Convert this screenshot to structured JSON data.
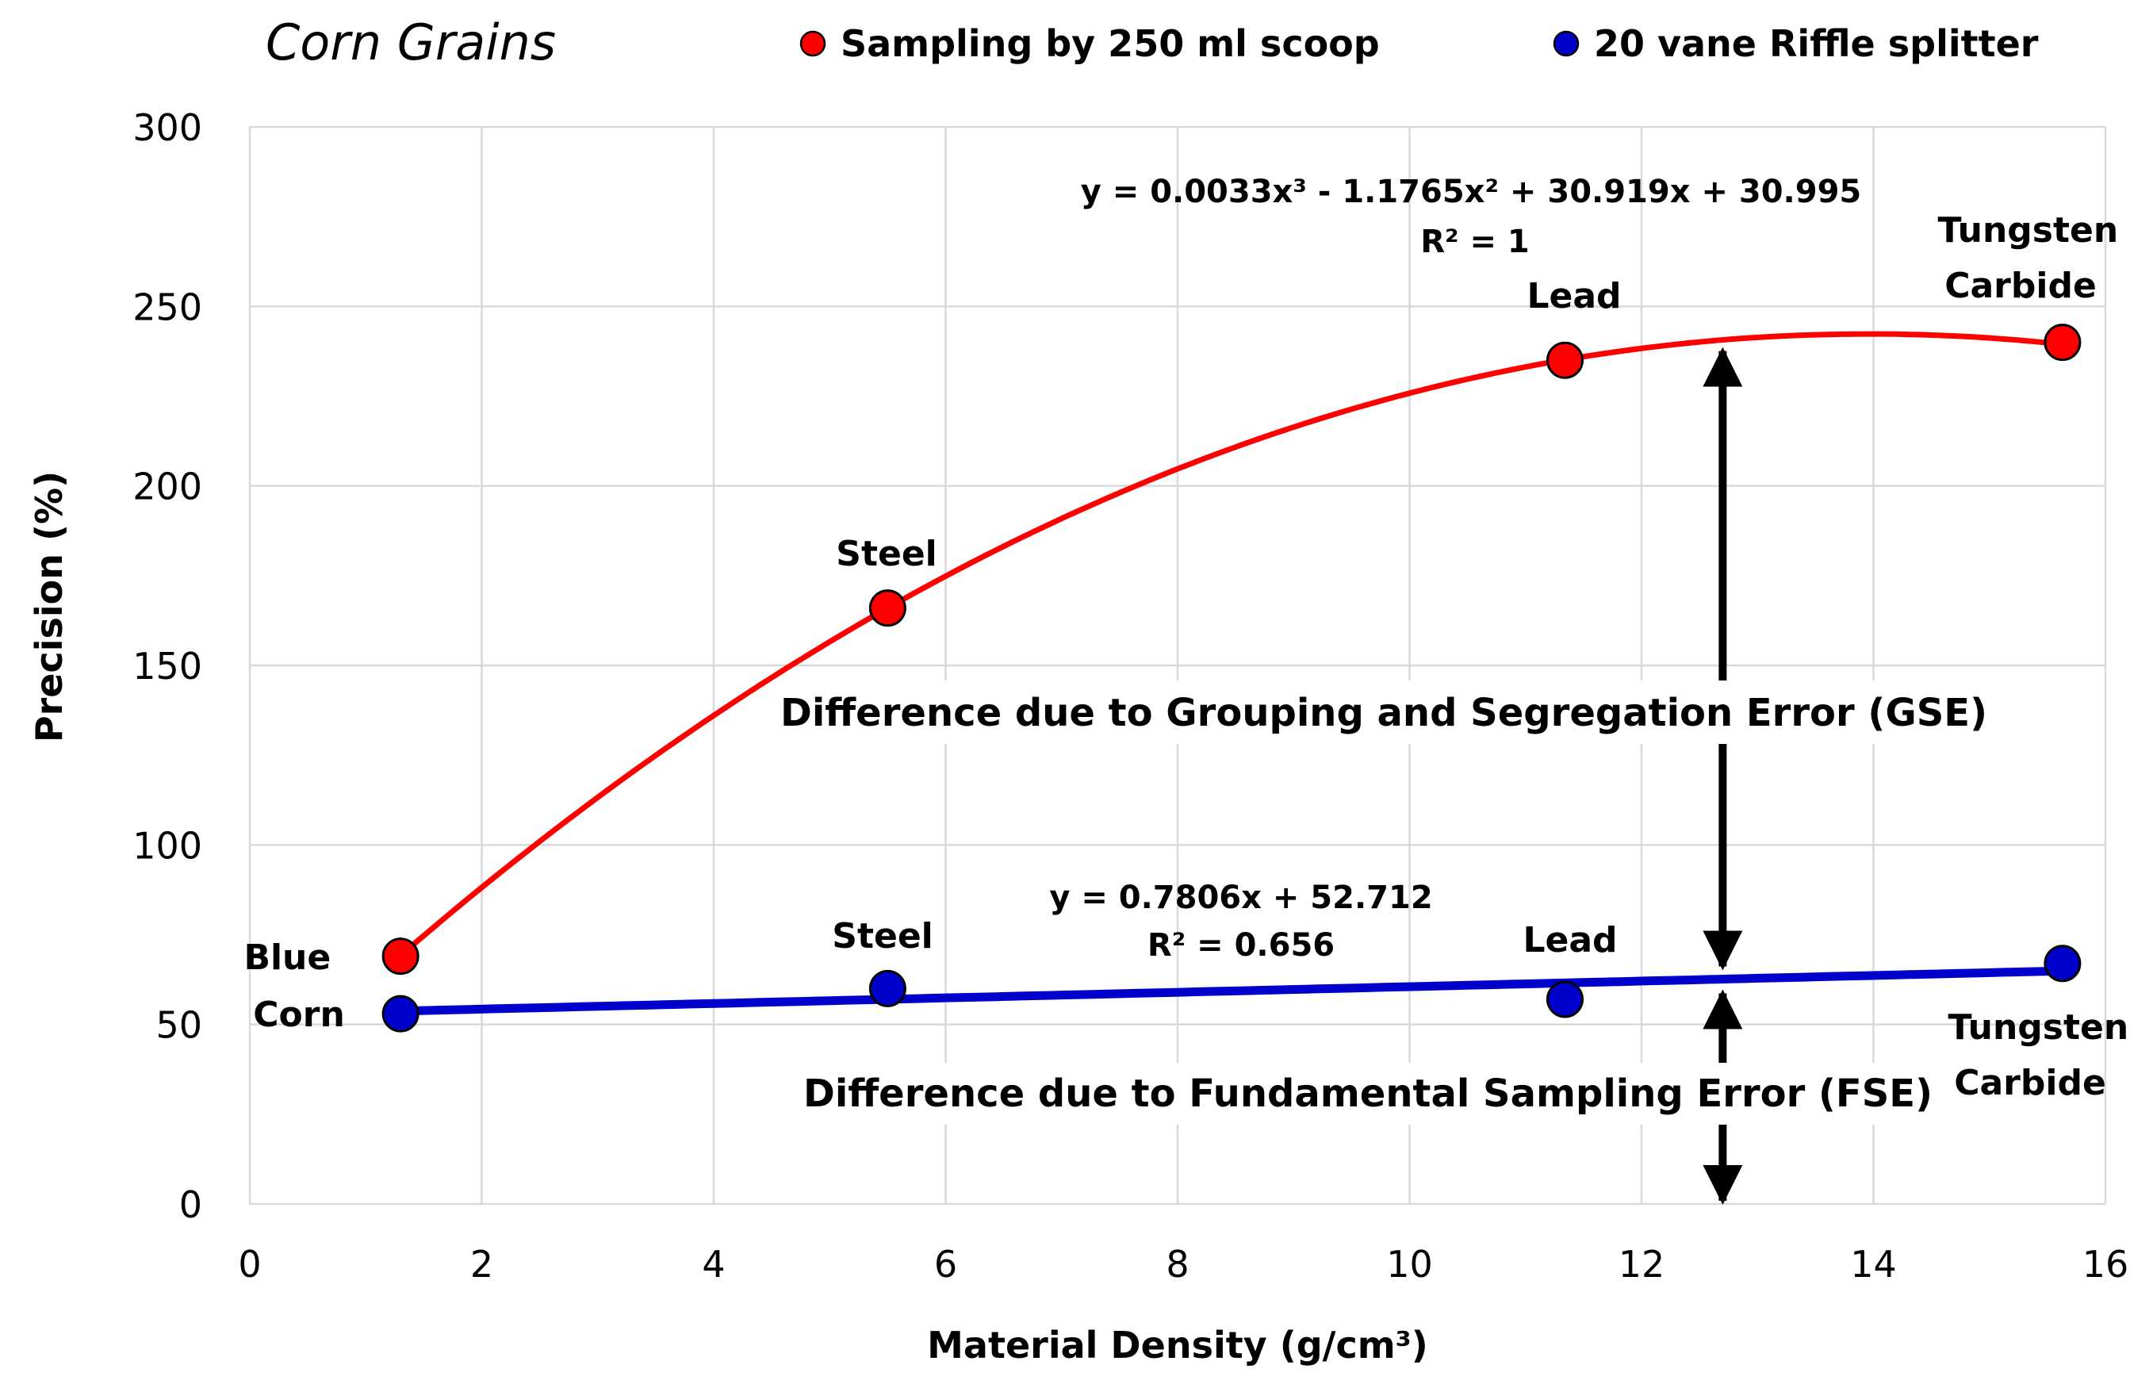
{
  "chart_data": {
    "type": "scatter",
    "title": "Corn Grains",
    "xlabel": "Material Density (g/cm³)",
    "ylabel": "Precision (%)",
    "xlim": [
      0,
      16
    ],
    "ylim": [
      0,
      300
    ],
    "xticks": [
      0,
      2,
      4,
      6,
      8,
      10,
      12,
      14,
      16
    ],
    "yticks": [
      0,
      50,
      100,
      150,
      200,
      250,
      300
    ],
    "grid": true,
    "legend_position": "top",
    "series": [
      {
        "name": "Sampling by 250 ml scoop",
        "color": "#ff0000",
        "x": [
          1.3,
          5.5,
          11.34,
          15.63
        ],
        "y": [
          69,
          166,
          235,
          240
        ],
        "point_labels": [
          "",
          "Steel",
          "Lead",
          "Tungsten Carbide"
        ],
        "trendline": {
          "kind": "poly3",
          "coefficients": [
            0.0033,
            -1.1765,
            30.919,
            30.995
          ],
          "equation": "y = 0.0033x³ - 1.1765x² + 30.919x + 30.995",
          "r2": "R² = 1"
        }
      },
      {
        "name": "20 vane Riffle splitter",
        "color": "#0000cc",
        "x": [
          1.3,
          5.5,
          11.34,
          15.63
        ],
        "y": [
          53,
          60,
          57,
          67
        ],
        "point_labels": [
          "Blue Corn",
          "Steel",
          "Lead",
          "Tungsten Carbide"
        ],
        "trendline": {
          "kind": "linear",
          "coefficients": [
            0.7806,
            52.712
          ],
          "equation": "y = 0.7806x + 52.712",
          "r2": "R² = 0.656"
        }
      }
    ],
    "annotations": {
      "arrow_x": 12.7,
      "gse": "Difference due to Grouping and Segregation Error (GSE)",
      "fse": "Difference due to Fundamental Sampling Error (FSE)"
    }
  }
}
